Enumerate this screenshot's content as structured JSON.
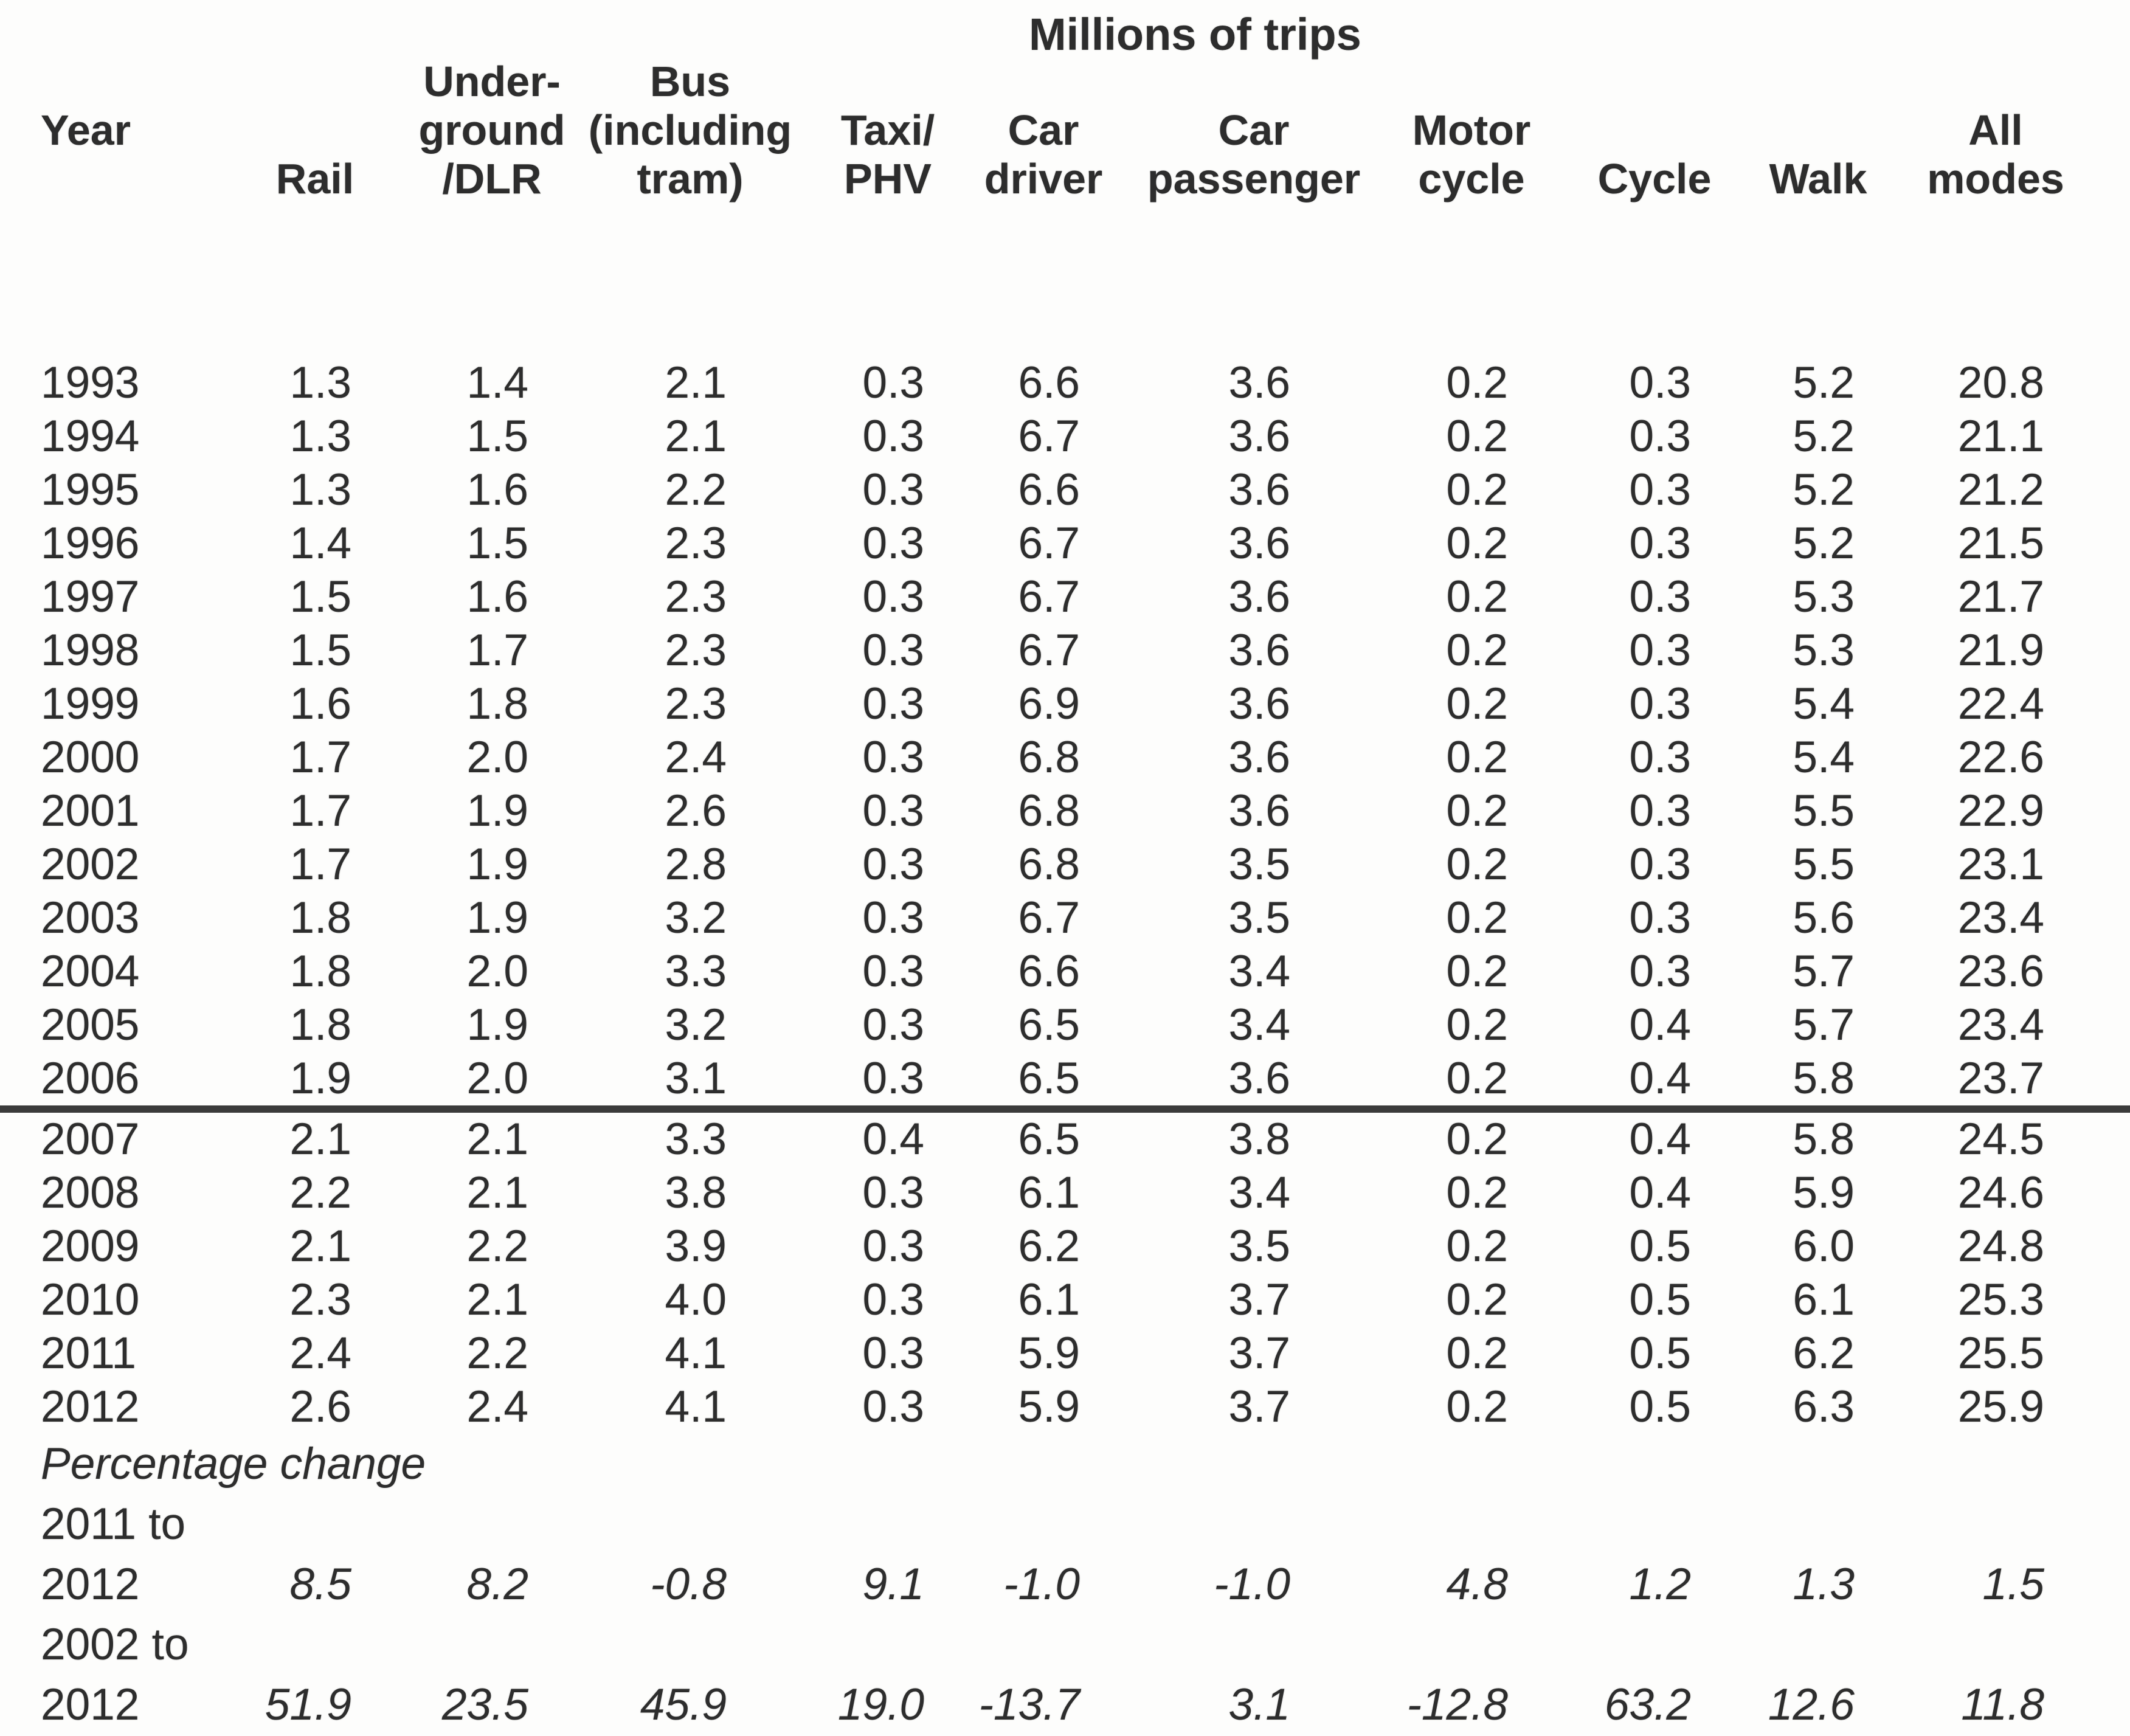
{
  "title": "Millions of trips",
  "header": {
    "columns": [
      {
        "id": "year",
        "lines": [
          "Year",
          ""
        ]
      },
      {
        "id": "rail",
        "lines": [
          "Rail"
        ]
      },
      {
        "id": "underground-dlr",
        "lines": [
          "Under-",
          "ground",
          "/DLR"
        ]
      },
      {
        "id": "bus",
        "lines": [
          "Bus",
          "(including",
          "tram)"
        ]
      },
      {
        "id": "taxi-phv",
        "lines": [
          "Taxi/",
          "PHV"
        ]
      },
      {
        "id": "car-driver",
        "lines": [
          "Car",
          "driver"
        ]
      },
      {
        "id": "car-passenger",
        "lines": [
          "Car",
          "passenger"
        ]
      },
      {
        "id": "motorcycle",
        "lines": [
          "Motor",
          "cycle"
        ]
      },
      {
        "id": "cycle",
        "lines": [
          "Cycle"
        ]
      },
      {
        "id": "walk",
        "lines": [
          "Walk"
        ]
      },
      {
        "id": "all-modes",
        "lines": [
          "All",
          "modes"
        ]
      }
    ]
  },
  "body": {
    "divider_before_year": "2007",
    "rows": [
      {
        "year": "1993",
        "values": [
          "1.3",
          "1.4",
          "2.1",
          "0.3",
          "6.6",
          "3.6",
          "0.2",
          "0.3",
          "5.2",
          "20.8"
        ]
      },
      {
        "year": "1994",
        "values": [
          "1.3",
          "1.5",
          "2.1",
          "0.3",
          "6.7",
          "3.6",
          "0.2",
          "0.3",
          "5.2",
          "21.1"
        ]
      },
      {
        "year": "1995",
        "values": [
          "1.3",
          "1.6",
          "2.2",
          "0.3",
          "6.6",
          "3.6",
          "0.2",
          "0.3",
          "5.2",
          "21.2"
        ]
      },
      {
        "year": "1996",
        "values": [
          "1.4",
          "1.5",
          "2.3",
          "0.3",
          "6.7",
          "3.6",
          "0.2",
          "0.3",
          "5.2",
          "21.5"
        ]
      },
      {
        "year": "1997",
        "values": [
          "1.5",
          "1.6",
          "2.3",
          "0.3",
          "6.7",
          "3.6",
          "0.2",
          "0.3",
          "5.3",
          "21.7"
        ]
      },
      {
        "year": "1998",
        "values": [
          "1.5",
          "1.7",
          "2.3",
          "0.3",
          "6.7",
          "3.6",
          "0.2",
          "0.3",
          "5.3",
          "21.9"
        ]
      },
      {
        "year": "1999",
        "values": [
          "1.6",
          "1.8",
          "2.3",
          "0.3",
          "6.9",
          "3.6",
          "0.2",
          "0.3",
          "5.4",
          "22.4"
        ]
      },
      {
        "year": "2000",
        "values": [
          "1.7",
          "2.0",
          "2.4",
          "0.3",
          "6.8",
          "3.6",
          "0.2",
          "0.3",
          "5.4",
          "22.6"
        ]
      },
      {
        "year": "2001",
        "values": [
          "1.7",
          "1.9",
          "2.6",
          "0.3",
          "6.8",
          "3.6",
          "0.2",
          "0.3",
          "5.5",
          "22.9"
        ]
      },
      {
        "year": "2002",
        "values": [
          "1.7",
          "1.9",
          "2.8",
          "0.3",
          "6.8",
          "3.5",
          "0.2",
          "0.3",
          "5.5",
          "23.1"
        ]
      },
      {
        "year": "2003",
        "values": [
          "1.8",
          "1.9",
          "3.2",
          "0.3",
          "6.7",
          "3.5",
          "0.2",
          "0.3",
          "5.6",
          "23.4"
        ]
      },
      {
        "year": "2004",
        "values": [
          "1.8",
          "2.0",
          "3.3",
          "0.3",
          "6.6",
          "3.4",
          "0.2",
          "0.3",
          "5.7",
          "23.6"
        ]
      },
      {
        "year": "2005",
        "values": [
          "1.8",
          "1.9",
          "3.2",
          "0.3",
          "6.5",
          "3.4",
          "0.2",
          "0.4",
          "5.7",
          "23.4"
        ]
      },
      {
        "year": "2006",
        "values": [
          "1.9",
          "2.0",
          "3.1",
          "0.3",
          "6.5",
          "3.6",
          "0.2",
          "0.4",
          "5.8",
          "23.7"
        ]
      },
      {
        "year": "2007",
        "values": [
          "2.1",
          "2.1",
          "3.3",
          "0.4",
          "6.5",
          "3.8",
          "0.2",
          "0.4",
          "5.8",
          "24.5"
        ]
      },
      {
        "year": "2008",
        "values": [
          "2.2",
          "2.1",
          "3.8",
          "0.3",
          "6.1",
          "3.4",
          "0.2",
          "0.4",
          "5.9",
          "24.6"
        ]
      },
      {
        "year": "2009",
        "values": [
          "2.1",
          "2.2",
          "3.9",
          "0.3",
          "6.2",
          "3.5",
          "0.2",
          "0.5",
          "6.0",
          "24.8"
        ]
      },
      {
        "year": "2010",
        "values": [
          "2.3",
          "2.1",
          "4.0",
          "0.3",
          "6.1",
          "3.7",
          "0.2",
          "0.5",
          "6.1",
          "25.3"
        ]
      },
      {
        "year": "2011",
        "values": [
          "2.4",
          "2.2",
          "4.1",
          "0.3",
          "5.9",
          "3.7",
          "0.2",
          "0.5",
          "6.2",
          "25.5"
        ]
      },
      {
        "year": "2012",
        "values": [
          "2.6",
          "2.4",
          "4.1",
          "0.3",
          "5.9",
          "3.7",
          "0.2",
          "0.5",
          "6.3",
          "25.9"
        ]
      }
    ]
  },
  "percentage_change": {
    "label": "Percentage change",
    "rows": [
      {
        "period_start": "2011 to",
        "period_end": "2012",
        "values": [
          "8.5",
          "8.2",
          "-0.8",
          "9.1",
          "-1.0",
          "-1.0",
          "4.8",
          "1.2",
          "1.3",
          "1.5"
        ]
      },
      {
        "period_start": "2002 to",
        "period_end": "2012",
        "values": [
          "51.9",
          "23.5",
          "45.9",
          "19.0",
          "-13.7",
          "3.1",
          "-12.8",
          "63.2",
          "12.6",
          "11.8"
        ]
      }
    ]
  },
  "chart_data": {
    "type": "table",
    "title": "Millions of trips",
    "columns": [
      "Year",
      "Rail",
      "Under-ground/DLR",
      "Bus (including tram)",
      "Taxi/PHV",
      "Car driver",
      "Car passenger",
      "Motor cycle",
      "Cycle",
      "Walk",
      "All modes"
    ],
    "rows": [
      [
        "1993",
        1.3,
        1.4,
        2.1,
        0.3,
        6.6,
        3.6,
        0.2,
        0.3,
        5.2,
        20.8
      ],
      [
        "1994",
        1.3,
        1.5,
        2.1,
        0.3,
        6.7,
        3.6,
        0.2,
        0.3,
        5.2,
        21.1
      ],
      [
        "1995",
        1.3,
        1.6,
        2.2,
        0.3,
        6.6,
        3.6,
        0.2,
        0.3,
        5.2,
        21.2
      ],
      [
        "1996",
        1.4,
        1.5,
        2.3,
        0.3,
        6.7,
        3.6,
        0.2,
        0.3,
        5.2,
        21.5
      ],
      [
        "1997",
        1.5,
        1.6,
        2.3,
        0.3,
        6.7,
        3.6,
        0.2,
        0.3,
        5.3,
        21.7
      ],
      [
        "1998",
        1.5,
        1.7,
        2.3,
        0.3,
        6.7,
        3.6,
        0.2,
        0.3,
        5.3,
        21.9
      ],
      [
        "1999",
        1.6,
        1.8,
        2.3,
        0.3,
        6.9,
        3.6,
        0.2,
        0.3,
        5.4,
        22.4
      ],
      [
        "2000",
        1.7,
        2.0,
        2.4,
        0.3,
        6.8,
        3.6,
        0.2,
        0.3,
        5.4,
        22.6
      ],
      [
        "2001",
        1.7,
        1.9,
        2.6,
        0.3,
        6.8,
        3.6,
        0.2,
        0.3,
        5.5,
        22.9
      ],
      [
        "2002",
        1.7,
        1.9,
        2.8,
        0.3,
        6.8,
        3.5,
        0.2,
        0.3,
        5.5,
        23.1
      ],
      [
        "2003",
        1.8,
        1.9,
        3.2,
        0.3,
        6.7,
        3.5,
        0.2,
        0.3,
        5.6,
        23.4
      ],
      [
        "2004",
        1.8,
        2.0,
        3.3,
        0.3,
        6.6,
        3.4,
        0.2,
        0.3,
        5.7,
        23.6
      ],
      [
        "2005",
        1.8,
        1.9,
        3.2,
        0.3,
        6.5,
        3.4,
        0.2,
        0.4,
        5.7,
        23.4
      ],
      [
        "2006",
        1.9,
        2.0,
        3.1,
        0.3,
        6.5,
        3.6,
        0.2,
        0.4,
        5.8,
        23.7
      ],
      [
        "2007",
        2.1,
        2.1,
        3.3,
        0.4,
        6.5,
        3.8,
        0.2,
        0.4,
        5.8,
        24.5
      ],
      [
        "2008",
        2.2,
        2.1,
        3.8,
        0.3,
        6.1,
        3.4,
        0.2,
        0.4,
        5.9,
        24.6
      ],
      [
        "2009",
        2.1,
        2.2,
        3.9,
        0.3,
        6.2,
        3.5,
        0.2,
        0.5,
        6.0,
        24.8
      ],
      [
        "2010",
        2.3,
        2.1,
        4.0,
        0.3,
        6.1,
        3.7,
        0.2,
        0.5,
        6.1,
        25.3
      ],
      [
        "2011",
        2.4,
        2.2,
        4.1,
        0.3,
        5.9,
        3.7,
        0.2,
        0.5,
        6.2,
        25.5
      ],
      [
        "2012",
        2.6,
        2.4,
        4.1,
        0.3,
        5.9,
        3.7,
        0.2,
        0.5,
        6.3,
        25.9
      ]
    ],
    "percentage_change_rows": [
      [
        "2011 to 2012",
        8.5,
        8.2,
        -0.8,
        9.1,
        -1.0,
        -1.0,
        4.8,
        1.2,
        1.3,
        1.5
      ],
      [
        "2002 to 2012",
        51.9,
        23.5,
        45.9,
        19.0,
        -13.7,
        3.1,
        -12.8,
        63.2,
        12.6,
        11.8
      ]
    ],
    "text_color": "#2d2d2d",
    "divider_color": "#3b3b3b",
    "background_color": "#fdfdfc"
  }
}
